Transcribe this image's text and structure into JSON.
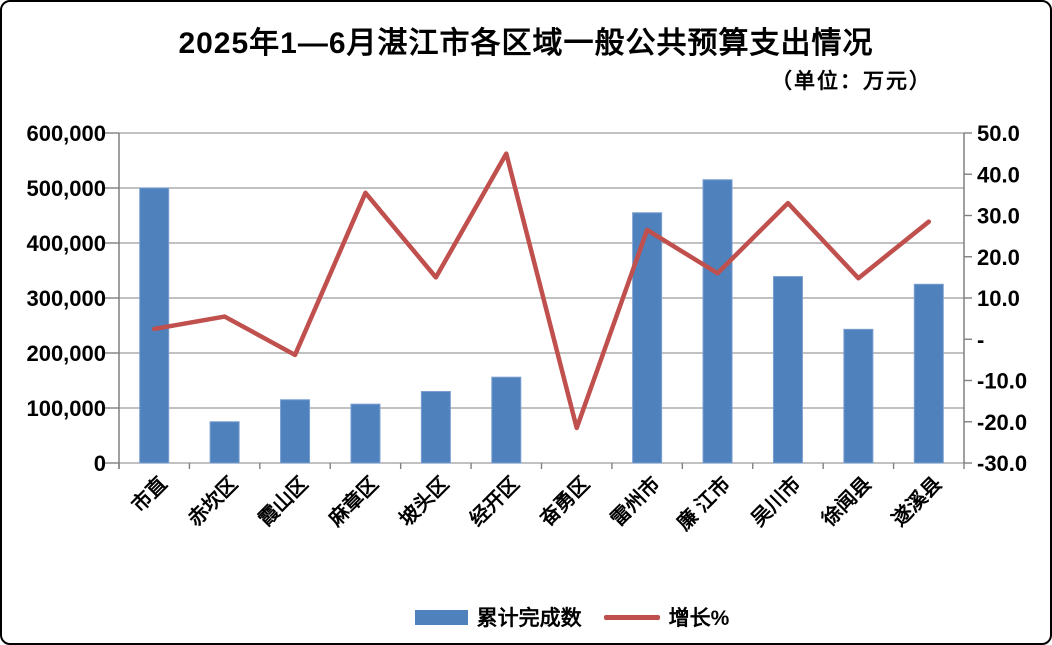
{
  "window": {
    "background": "#ffffff",
    "border_color": "#000000"
  },
  "chart": {
    "title": "2025年1—6月湛江市各区域一般公共预算支出情况",
    "unit_note": "（单位：万元）"
  },
  "chart_data": {
    "type": "bar+line",
    "title": "2025年1—6月湛江市各区域一般公共预算支出情况",
    "subtitle": "（单位：万元）",
    "categories": [
      "市直",
      "赤坎区",
      "霞山区",
      "麻章区",
      "坡头区",
      "经开区",
      "奋勇区",
      "雷州市",
      "廉 江市",
      "吴川市",
      "徐闻县",
      "遂溪县"
    ],
    "series": [
      {
        "name": "累计完成数",
        "type": "bar",
        "axis": "left",
        "color": "#4F81BD",
        "border_color": "#7B9FD0",
        "values": [
          500000,
          75000,
          115000,
          107000,
          130000,
          156000,
          0,
          455000,
          515000,
          339000,
          243000,
          325000
        ]
      },
      {
        "name": "增长%",
        "type": "line",
        "axis": "right",
        "color": "#C0504D",
        "values": [
          2.5,
          5.5,
          -3.8,
          35.5,
          15.0,
          45.0,
          -21.5,
          26.5,
          16.0,
          33.0,
          14.8,
          28.5
        ]
      }
    ],
    "left_axis": {
      "min": 0,
      "max": 600000,
      "step": 100000,
      "tick_labels_top_to_bottom": [
        "600,000",
        "500,000",
        "400,000",
        "300,000",
        "200,000",
        "100,000",
        "0"
      ]
    },
    "right_axis": {
      "min": -30,
      "max": 50,
      "step": 10,
      "tick_labels_top_to_bottom": [
        "50.0",
        "40.0",
        "30.0",
        "20.0",
        "10.0",
        "-",
        "-10.0",
        "-20.0",
        "-30.0"
      ]
    },
    "grid": true,
    "legend_position": "bottom"
  },
  "colors": {
    "grid": "#9C9C9C",
    "axis": "#808080",
    "text": "#000000"
  }
}
